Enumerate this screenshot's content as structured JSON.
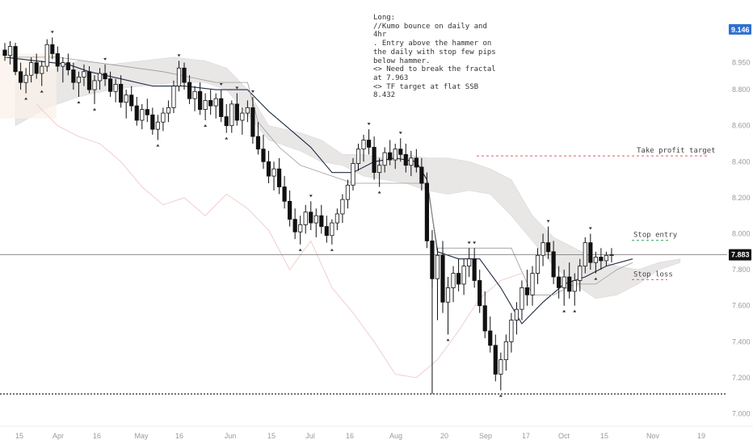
{
  "chart_data": {
    "type": "candlestick",
    "note": "Long:\n//Kumo bounce on daily and 4hr\n. Entry above the hammer on the daily with stop few pips below hammer.\n<> Need to break the fractal at 7.963\n<> TF target at flat SSB 8.432",
    "ylim": [
      7.0,
      9.2
    ],
    "y_ticks": [
      "9.146",
      "8.950",
      "8.800",
      "8.600",
      "8.400",
      "8.200",
      "8.000",
      "7.800",
      "7.600",
      "7.400",
      "7.200",
      "7.000"
    ],
    "x_ticks": [
      "15",
      "Apr",
      "16",
      "May",
      "16",
      "Jun",
      "15",
      "Jul",
      "16",
      "Aug",
      "20",
      "Sep",
      "17",
      "Oct",
      "15",
      "Nov",
      "19"
    ],
    "current_price": "7.883",
    "current_price_value": 7.883,
    "high_price_label": "9.146",
    "low_line_value": 7.11,
    "annotations": [
      {
        "text": "Take profit target",
        "price": 8.432,
        "color": "#e05a6b",
        "style": "dashed"
      },
      {
        "text": "Stop entry",
        "price": 7.963,
        "color": "#2e9e5b",
        "style": "dashed"
      },
      {
        "text": "Stop loss",
        "price": 7.745,
        "color": "#e05a6b",
        "style": "dashed"
      }
    ],
    "candles": [
      [
        9.02,
        9.06,
        8.96,
        8.99
      ],
      [
        8.99,
        9.07,
        8.94,
        9.04
      ],
      [
        9.04,
        9.06,
        8.88,
        8.9
      ],
      [
        8.9,
        8.95,
        8.8,
        8.84
      ],
      [
        8.84,
        8.92,
        8.78,
        8.88
      ],
      [
        8.88,
        8.98,
        8.84,
        8.95
      ],
      [
        8.95,
        9.0,
        8.86,
        8.89
      ],
      [
        8.89,
        8.96,
        8.82,
        8.93
      ],
      [
        8.93,
        9.08,
        8.9,
        9.05
      ],
      [
        9.05,
        9.09,
        8.97,
        9.0
      ],
      [
        9.0,
        9.04,
        8.9,
        8.93
      ],
      [
        8.93,
        8.98,
        8.84,
        8.95
      ],
      [
        8.95,
        9.0,
        8.88,
        8.91
      ],
      [
        8.91,
        8.95,
        8.8,
        8.84
      ],
      [
        8.84,
        8.9,
        8.76,
        8.87
      ],
      [
        8.87,
        8.94,
        8.82,
        8.9
      ],
      [
        8.9,
        8.93,
        8.78,
        8.8
      ],
      [
        8.8,
        8.88,
        8.72,
        8.85
      ],
      [
        8.85,
        8.92,
        8.8,
        8.89
      ],
      [
        8.89,
        8.94,
        8.82,
        8.86
      ],
      [
        8.86,
        8.9,
        8.76,
        8.79
      ],
      [
        8.79,
        8.86,
        8.73,
        8.83
      ],
      [
        8.83,
        8.88,
        8.7,
        8.73
      ],
      [
        8.73,
        8.8,
        8.64,
        8.77
      ],
      [
        8.77,
        8.82,
        8.68,
        8.71
      ],
      [
        8.71,
        8.76,
        8.6,
        8.63
      ],
      [
        8.63,
        8.72,
        8.58,
        8.69
      ],
      [
        8.69,
        8.75,
        8.62,
        8.66
      ],
      [
        8.66,
        8.7,
        8.55,
        8.58
      ],
      [
        8.58,
        8.66,
        8.52,
        8.62
      ],
      [
        8.62,
        8.7,
        8.57,
        8.67
      ],
      [
        8.67,
        8.74,
        8.62,
        8.7
      ],
      [
        8.7,
        8.85,
        8.67,
        8.82
      ],
      [
        8.82,
        8.96,
        8.79,
        8.92
      ],
      [
        8.92,
        8.95,
        8.8,
        8.84
      ],
      [
        8.84,
        8.88,
        8.72,
        8.75
      ],
      [
        8.75,
        8.82,
        8.68,
        8.79
      ],
      [
        8.79,
        8.84,
        8.66,
        8.69
      ],
      [
        8.69,
        8.78,
        8.63,
        8.74
      ],
      [
        8.74,
        8.8,
        8.66,
        8.71
      ],
      [
        8.71,
        8.78,
        8.64,
        8.75
      ],
      [
        8.75,
        8.8,
        8.62,
        8.65
      ],
      [
        8.65,
        8.72,
        8.56,
        8.6
      ],
      [
        8.6,
        8.74,
        8.56,
        8.72
      ],
      [
        8.72,
        8.78,
        8.6,
        8.63
      ],
      [
        8.63,
        8.7,
        8.55,
        8.67
      ],
      [
        8.67,
        8.74,
        8.62,
        8.7
      ],
      [
        8.7,
        8.76,
        8.5,
        8.54
      ],
      [
        8.54,
        8.62,
        8.44,
        8.47
      ],
      [
        8.47,
        8.55,
        8.36,
        8.4
      ],
      [
        8.4,
        8.46,
        8.28,
        8.32
      ],
      [
        8.32,
        8.4,
        8.24,
        8.36
      ],
      [
        8.36,
        8.42,
        8.22,
        8.26
      ],
      [
        8.26,
        8.32,
        8.14,
        8.18
      ],
      [
        8.18,
        8.24,
        8.04,
        8.08
      ],
      [
        8.08,
        8.14,
        7.97,
        8.01
      ],
      [
        8.01,
        8.1,
        7.94,
        8.05
      ],
      [
        8.05,
        8.16,
        8.0,
        8.12
      ],
      [
        8.12,
        8.18,
        8.02,
        8.06
      ],
      [
        8.06,
        8.14,
        7.98,
        8.1
      ],
      [
        8.1,
        8.16,
        8.0,
        8.04
      ],
      [
        8.04,
        8.1,
        7.95,
        7.99
      ],
      [
        7.99,
        8.08,
        7.94,
        8.06
      ],
      [
        8.06,
        8.14,
        8.02,
        8.11
      ],
      [
        8.11,
        8.22,
        8.06,
        8.19
      ],
      [
        8.19,
        8.3,
        8.14,
        8.27
      ],
      [
        8.27,
        8.42,
        8.24,
        8.39
      ],
      [
        8.39,
        8.5,
        8.35,
        8.47
      ],
      [
        8.47,
        8.55,
        8.4,
        8.52
      ],
      [
        8.52,
        8.58,
        8.44,
        8.48
      ],
      [
        8.48,
        8.54,
        8.3,
        8.34
      ],
      [
        8.34,
        8.42,
        8.26,
        8.38
      ],
      [
        8.38,
        8.48,
        8.34,
        8.45
      ],
      [
        8.45,
        8.52,
        8.38,
        8.41
      ],
      [
        8.41,
        8.5,
        8.36,
        8.47
      ],
      [
        8.47,
        8.53,
        8.4,
        8.44
      ],
      [
        8.44,
        8.5,
        8.34,
        8.38
      ],
      [
        8.38,
        8.46,
        8.32,
        8.42
      ],
      [
        8.42,
        8.47,
        8.34,
        8.37
      ],
      [
        8.37,
        8.42,
        8.24,
        8.28
      ],
      [
        8.28,
        8.34,
        7.92,
        7.96
      ],
      [
        7.96,
        8.02,
        7.7,
        7.75
      ],
      [
        7.75,
        7.92,
        7.52,
        7.88
      ],
      [
        7.88,
        7.96,
        7.56,
        7.62
      ],
      [
        7.62,
        7.76,
        7.44,
        7.7
      ],
      [
        7.7,
        7.82,
        7.62,
        7.78
      ],
      [
        7.78,
        7.86,
        7.68,
        7.72
      ],
      [
        7.72,
        7.86,
        7.66,
        7.82
      ],
      [
        7.82,
        7.92,
        7.76,
        7.86
      ],
      [
        7.86,
        7.92,
        7.7,
        7.74
      ],
      [
        7.74,
        7.8,
        7.56,
        7.6
      ],
      [
        7.6,
        7.68,
        7.42,
        7.46
      ],
      [
        7.46,
        7.54,
        7.34,
        7.38
      ],
      [
        7.38,
        7.44,
        7.18,
        7.22
      ],
      [
        7.22,
        7.34,
        7.13,
        7.3
      ],
      [
        7.3,
        7.44,
        7.24,
        7.4
      ],
      [
        7.4,
        7.56,
        7.34,
        7.52
      ],
      [
        7.52,
        7.62,
        7.44,
        7.58
      ],
      [
        7.58,
        7.74,
        7.52,
        7.7
      ],
      [
        7.7,
        7.8,
        7.6,
        7.66
      ],
      [
        7.66,
        7.82,
        7.6,
        7.78
      ],
      [
        7.78,
        7.92,
        7.72,
        7.88
      ],
      [
        7.88,
        8.0,
        7.82,
        7.95
      ],
      [
        7.95,
        8.04,
        7.86,
        7.9
      ],
      [
        7.9,
        7.96,
        7.72,
        7.76
      ],
      [
        7.76,
        7.82,
        7.64,
        7.7
      ],
      [
        7.7,
        7.8,
        7.6,
        7.76
      ],
      [
        7.76,
        7.84,
        7.64,
        7.68
      ],
      [
        7.68,
        7.78,
        7.6,
        7.74
      ],
      [
        7.74,
        7.86,
        7.68,
        7.82
      ],
      [
        7.82,
        7.98,
        7.78,
        7.95
      ],
      [
        7.95,
        8.0,
        7.8,
        7.84
      ],
      [
        7.84,
        7.9,
        7.78,
        7.87
      ],
      [
        7.87,
        7.92,
        7.8,
        7.85
      ],
      [
        7.85,
        7.9,
        7.82,
        7.88
      ],
      [
        7.88,
        7.92,
        7.84,
        7.883
      ]
    ],
    "tenkan": [
      [
        0,
        8.98
      ],
      [
        6,
        8.96
      ],
      [
        12,
        8.94
      ],
      [
        16,
        8.9
      ],
      [
        22,
        8.86
      ],
      [
        28,
        8.82
      ],
      [
        34,
        8.82
      ],
      [
        40,
        8.8
      ],
      [
        46,
        8.8
      ],
      [
        50,
        8.68
      ],
      [
        54,
        8.58
      ],
      [
        58,
        8.48
      ],
      [
        62,
        8.34
      ],
      [
        66,
        8.34
      ],
      [
        70,
        8.4
      ],
      [
        74,
        8.42
      ],
      [
        78,
        8.4
      ],
      [
        80,
        8.3
      ],
      [
        82,
        7.9
      ],
      [
        86,
        7.86
      ],
      [
        90,
        7.86
      ],
      [
        94,
        7.7
      ],
      [
        98,
        7.5
      ],
      [
        102,
        7.62
      ],
      [
        106,
        7.72
      ],
      [
        110,
        7.76
      ],
      [
        114,
        7.82
      ],
      [
        119,
        7.86
      ]
    ],
    "kijun": [
      [
        0,
        8.98
      ],
      [
        10,
        8.98
      ],
      [
        20,
        8.94
      ],
      [
        30,
        8.9
      ],
      [
        40,
        8.84
      ],
      [
        46,
        8.84
      ],
      [
        48,
        8.62
      ],
      [
        52,
        8.48
      ],
      [
        56,
        8.38
      ],
      [
        62,
        8.32
      ],
      [
        66,
        8.28
      ],
      [
        72,
        8.28
      ],
      [
        78,
        8.28
      ],
      [
        80,
        8.28
      ],
      [
        82,
        7.92
      ],
      [
        88,
        7.92
      ],
      [
        96,
        7.92
      ],
      [
        100,
        7.66
      ],
      [
        104,
        7.66
      ],
      [
        108,
        7.72
      ],
      [
        112,
        7.72
      ],
      [
        116,
        7.8
      ],
      [
        119,
        7.84
      ]
    ],
    "chikou": [
      [
        6,
        8.72
      ],
      [
        10,
        8.6
      ],
      [
        14,
        8.54
      ],
      [
        18,
        8.5
      ],
      [
        22,
        8.4
      ],
      [
        26,
        8.26
      ],
      [
        30,
        8.16
      ],
      [
        34,
        8.2
      ],
      [
        38,
        8.1
      ],
      [
        42,
        8.22
      ],
      [
        46,
        8.14
      ],
      [
        50,
        8.02
      ],
      [
        54,
        7.8
      ],
      [
        58,
        7.96
      ],
      [
        62,
        7.7
      ],
      [
        66,
        7.56
      ],
      [
        70,
        7.4
      ],
      [
        74,
        7.22
      ],
      [
        78,
        7.2
      ],
      [
        82,
        7.3
      ],
      [
        86,
        7.46
      ],
      [
        90,
        7.64
      ],
      [
        94,
        7.74
      ],
      [
        98,
        7.78
      ]
    ],
    "cloud_top": [
      [
        2,
        8.84
      ],
      [
        8,
        8.9
      ],
      [
        14,
        8.96
      ],
      [
        20,
        8.94
      ],
      [
        26,
        8.96
      ],
      [
        32,
        8.98
      ],
      [
        38,
        8.96
      ],
      [
        42,
        8.92
      ],
      [
        46,
        8.8
      ],
      [
        50,
        8.6
      ],
      [
        56,
        8.56
      ],
      [
        60,
        8.52
      ],
      [
        64,
        8.44
      ],
      [
        68,
        8.44
      ],
      [
        72,
        8.42
      ],
      [
        76,
        8.44
      ],
      [
        80,
        8.42
      ],
      [
        84,
        8.42
      ],
      [
        88,
        8.4
      ],
      [
        92,
        8.36
      ],
      [
        96,
        8.3
      ],
      [
        100,
        8.1
      ],
      [
        104,
        7.98
      ],
      [
        108,
        7.92
      ],
      [
        112,
        7.86
      ],
      [
        116,
        7.82
      ],
      [
        120,
        7.8
      ],
      [
        124,
        7.84
      ],
      [
        128,
        7.86
      ]
    ],
    "cloud_bottom": [
      [
        2,
        8.6
      ],
      [
        8,
        8.7
      ],
      [
        14,
        8.76
      ],
      [
        20,
        8.8
      ],
      [
        26,
        8.82
      ],
      [
        32,
        8.84
      ],
      [
        38,
        8.84
      ],
      [
        42,
        8.8
      ],
      [
        46,
        8.66
      ],
      [
        50,
        8.52
      ],
      [
        56,
        8.46
      ],
      [
        60,
        8.4
      ],
      [
        64,
        8.38
      ],
      [
        68,
        8.32
      ],
      [
        72,
        8.3
      ],
      [
        76,
        8.28
      ],
      [
        80,
        8.24
      ],
      [
        84,
        8.22
      ],
      [
        88,
        8.24
      ],
      [
        92,
        8.22
      ],
      [
        96,
        8.1
      ],
      [
        100,
        7.96
      ],
      [
        104,
        7.82
      ],
      [
        108,
        7.72
      ],
      [
        112,
        7.64
      ],
      [
        116,
        7.66
      ],
      [
        120,
        7.72
      ],
      [
        124,
        7.8
      ],
      [
        128,
        7.84
      ]
    ]
  }
}
